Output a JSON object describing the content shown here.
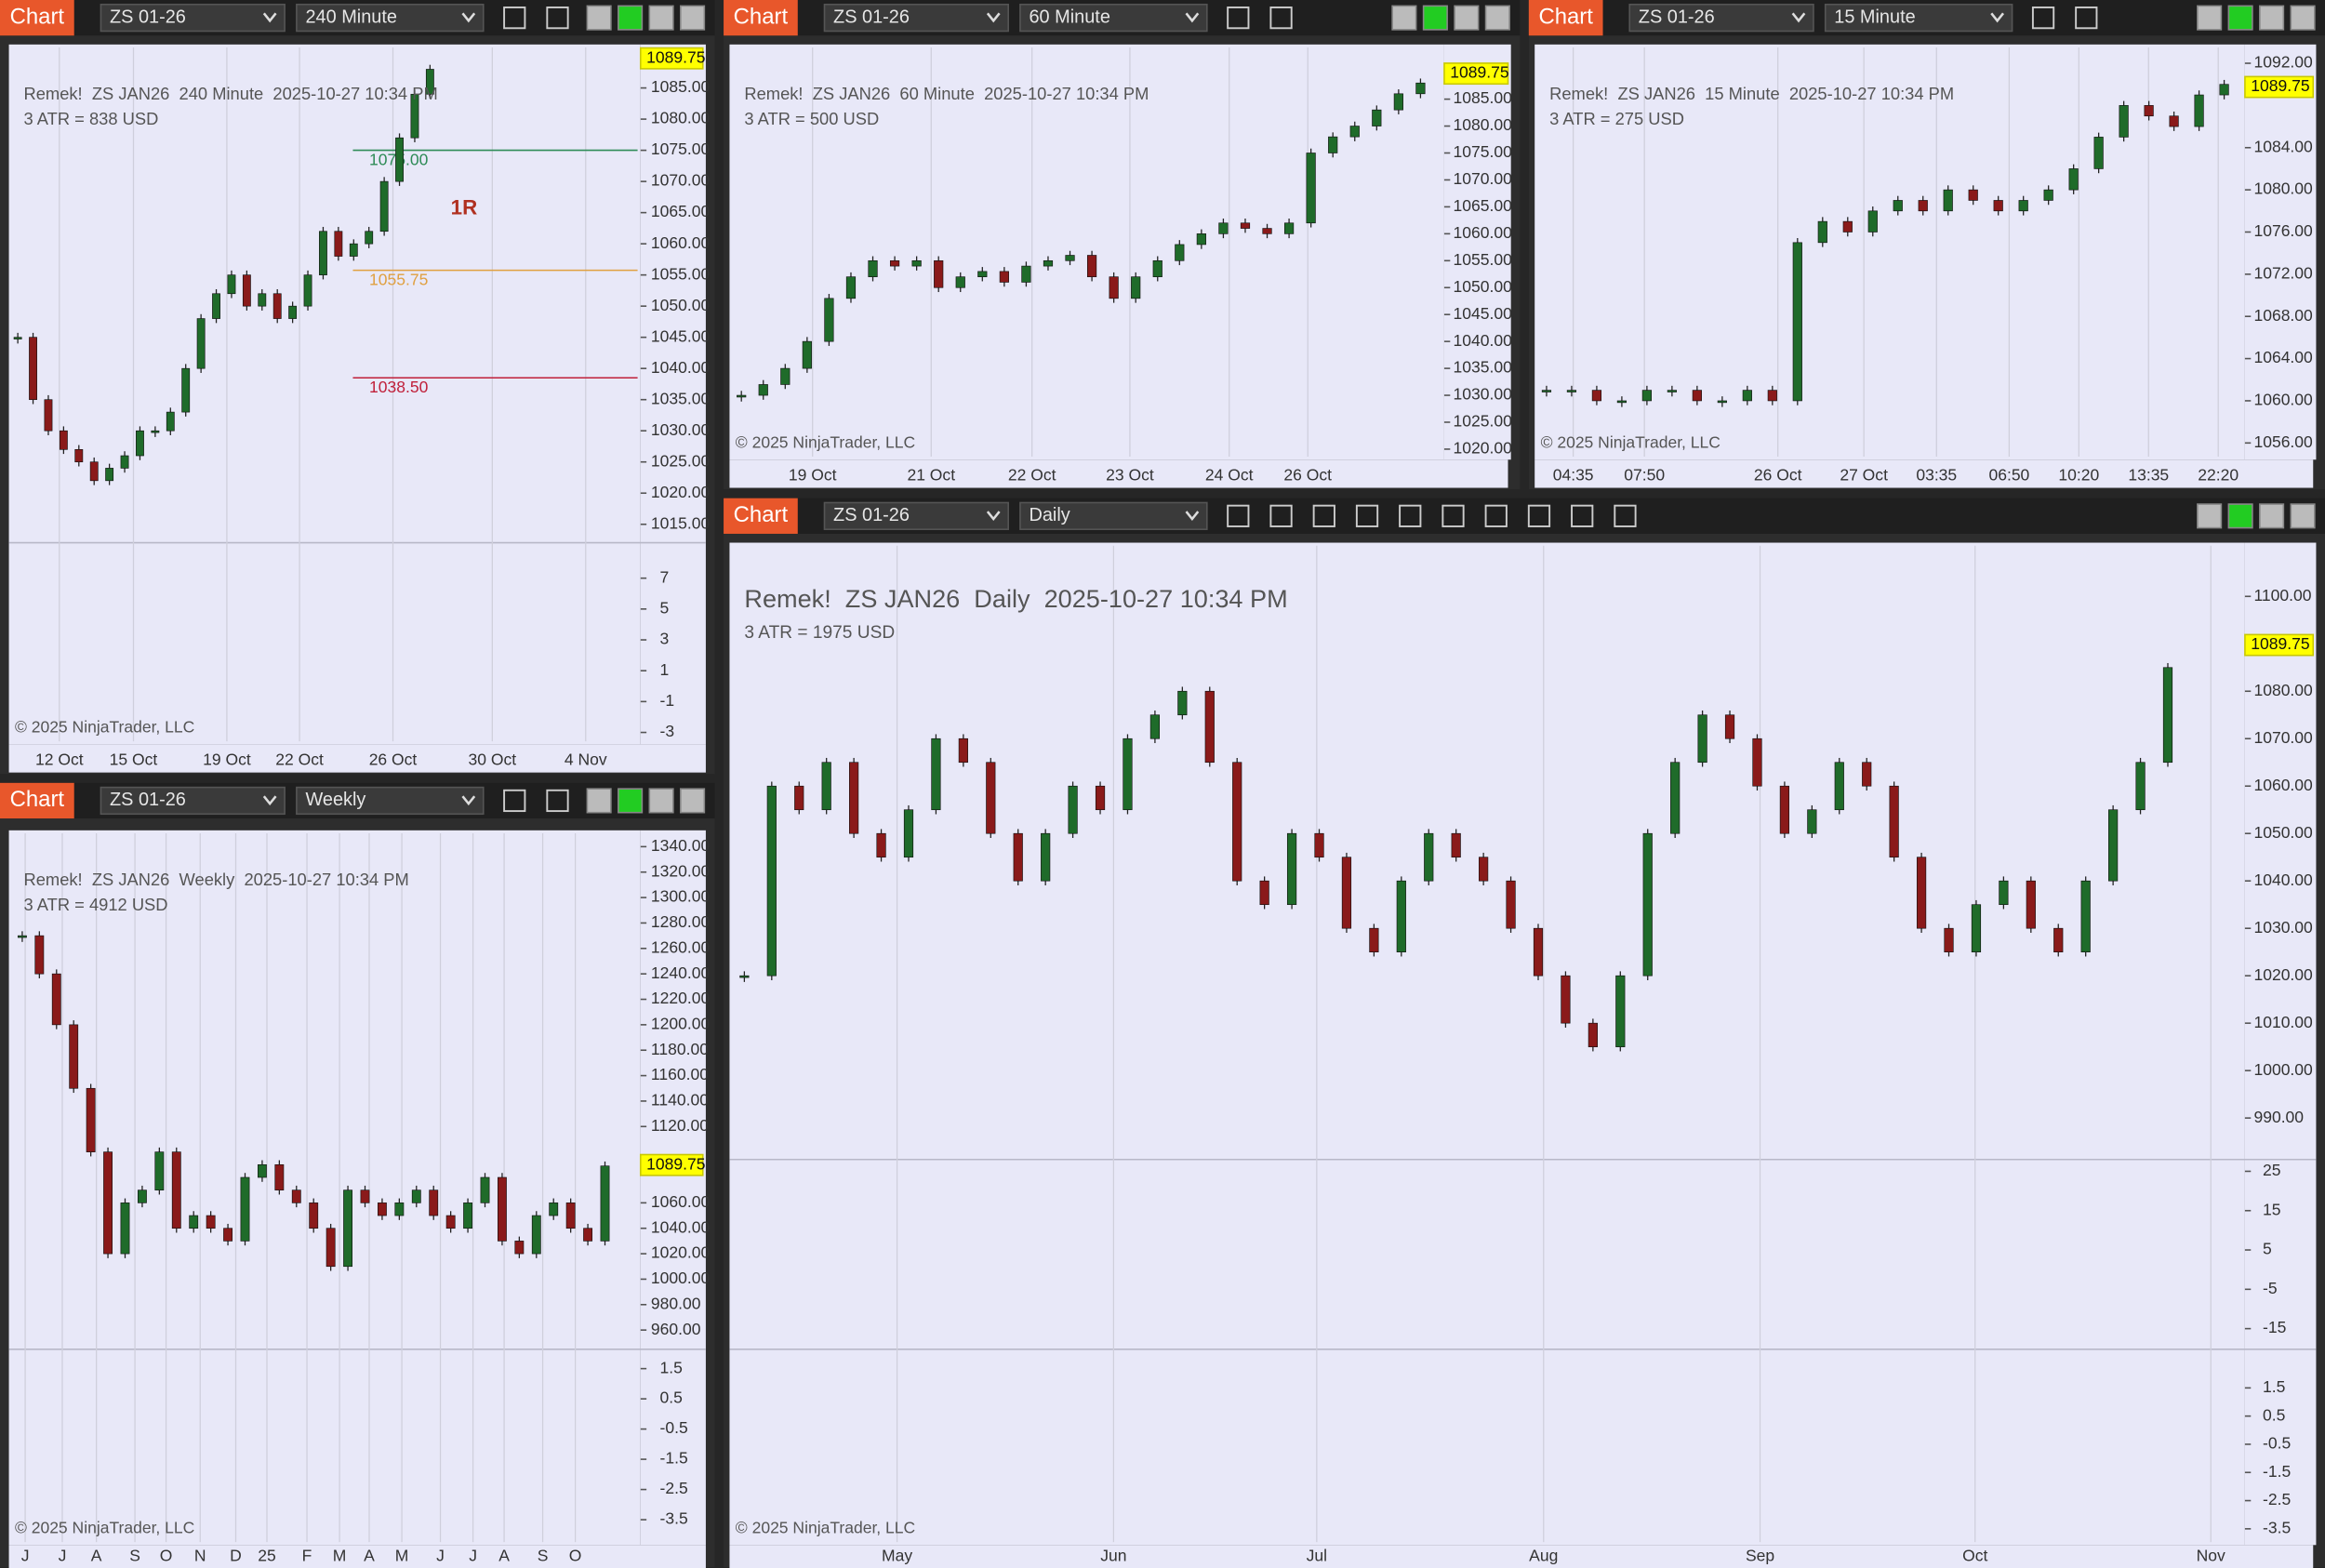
{
  "windows": [
    {
      "header": {
        "label": "Chart",
        "instrument": "ZS 01-26",
        "interval": "240 Minute"
      },
      "title": "Remek!  ZS JAN26  240 Minute  2025-10-27 10:34 PM",
      "atr": "3 ATR = 838 USD",
      "last_price": 1089.75,
      "ylim": [
        1013,
        1091.5
      ],
      "yticks": [
        {
          "value": 1085,
          "label": "1085.00"
        },
        {
          "value": 1080,
          "label": "1080.00"
        },
        {
          "value": 1075,
          "label": "1075.00"
        },
        {
          "value": 1070,
          "label": "1070.00"
        },
        {
          "value": 1065,
          "label": "1065.00"
        },
        {
          "value": 1060,
          "label": "1060.00"
        },
        {
          "value": 1055,
          "label": "1055.00"
        },
        {
          "value": 1050,
          "label": "1050.00"
        },
        {
          "value": 1045,
          "label": "1045.00"
        },
        {
          "value": 1040,
          "label": "1040.00"
        },
        {
          "value": 1035,
          "label": "1035.00"
        },
        {
          "value": 1030,
          "label": "1030.00"
        },
        {
          "value": 1025,
          "label": "1025.00"
        },
        {
          "value": 1020,
          "label": "1020.00"
        },
        {
          "value": 1015,
          "label": "1015.00"
        }
      ],
      "osc": [
        {
          "ylim": [
            -3.58,
            9.3
          ],
          "yticks": [
            7,
            5,
            3,
            1,
            -1,
            -3
          ]
        }
      ],
      "time_labels": [
        "12 Oct",
        "15 Oct",
        "19 Oct",
        "22 Oct",
        "26 Oct",
        "30 Oct",
        "4 Nov"
      ],
      "closes": [
        1045,
        1035,
        1030,
        1027,
        1025,
        1022,
        1024,
        1026,
        1030,
        1030,
        1033,
        1040,
        1048,
        1052,
        1055,
        1050,
        1052,
        1048,
        1050,
        1055,
        1062,
        1058,
        1060,
        1062,
        1070,
        1077,
        1084,
        1088
      ],
      "levels": [
        {
          "value": 1075,
          "label": "1075.00",
          "color": "#2e8b57"
        },
        {
          "value": 1055.75,
          "label": "1055.75",
          "color": "#e0a040"
        },
        {
          "value": 1038.5,
          "label": "1038.50",
          "color": "#c0203a"
        }
      ],
      "note": "1R",
      "copyright": "© 2025 NinjaTrader, LLC"
    },
    {
      "header": {
        "label": "Chart",
        "instrument": "ZS 01-26",
        "interval": "60 Minute"
      },
      "title": "Remek!  ZS JAN26  60 Minute  2025-10-27 10:34 PM",
      "atr": "3 ATR = 500 USD",
      "last_price": 1089.75,
      "ylim": [
        1018.6,
        1094.6
      ],
      "yticks": [
        {
          "value": 1085,
          "label": "1085.00"
        },
        {
          "value": 1080,
          "label": "1080.00"
        },
        {
          "value": 1075,
          "label": "1075.00"
        },
        {
          "value": 1070,
          "label": "1070.00"
        },
        {
          "value": 1065,
          "label": "1065.00"
        },
        {
          "value": 1060,
          "label": "1060.00"
        },
        {
          "value": 1055,
          "label": "1055.00"
        },
        {
          "value": 1050,
          "label": "1050.00"
        },
        {
          "value": 1045,
          "label": "1045.00"
        },
        {
          "value": 1040,
          "label": "1040.00"
        },
        {
          "value": 1035,
          "label": "1035.00"
        },
        {
          "value": 1030,
          "label": "1030.00"
        },
        {
          "value": 1025,
          "label": "1025.00"
        },
        {
          "value": 1020,
          "label": "1020.00"
        }
      ],
      "time_labels": [
        "19 Oct",
        "21 Oct",
        "22 Oct",
        "23 Oct",
        "24 Oct",
        "26 Oct"
      ],
      "closes": [
        1030,
        1032,
        1035,
        1040,
        1048,
        1052,
        1055,
        1054,
        1055,
        1050,
        1052,
        1053,
        1051,
        1054,
        1055,
        1056,
        1052,
        1048,
        1052,
        1055,
        1058,
        1060,
        1062,
        1061,
        1060,
        1062,
        1075,
        1078,
        1080,
        1083,
        1086,
        1088
      ],
      "copyright": "© 2025 NinjaTrader, LLC"
    },
    {
      "header": {
        "label": "Chart",
        "instrument": "ZS 01-26",
        "interval": "15 Minute"
      },
      "title": "Remek!  ZS JAN26  15 Minute  2025-10-27 10:34 PM",
      "atr": "3 ATR = 275 USD",
      "last_price": 1089.75,
      "ylim": [
        1054.7,
        1093.5
      ],
      "yticks": [
        {
          "value": 1092,
          "label": "1092.00"
        },
        {
          "value": 1084,
          "label": "1084.00"
        },
        {
          "value": 1080,
          "label": "1080.00"
        },
        {
          "value": 1076,
          "label": "1076.00"
        },
        {
          "value": 1072,
          "label": "1072.00"
        },
        {
          "value": 1068,
          "label": "1068.00"
        },
        {
          "value": 1064,
          "label": "1064.00"
        },
        {
          "value": 1060,
          "label": "1060.00"
        },
        {
          "value": 1056,
          "label": "1056.00"
        }
      ],
      "time_labels": [
        "04:35",
        "07:50",
        "26 Oct",
        "27 Oct",
        "03:35",
        "06:50",
        "10:20",
        "13:35",
        "22:20"
      ],
      "closes": [
        1061,
        1061,
        1060,
        1060,
        1061,
        1061,
        1060,
        1060,
        1061,
        1060,
        1075,
        1077,
        1076,
        1078,
        1079,
        1078,
        1080,
        1079,
        1078,
        1079,
        1080,
        1082,
        1085,
        1088,
        1087,
        1086,
        1089,
        1090
      ],
      "copyright": "© 2025 NinjaTrader, LLC"
    },
    {
      "header": {
        "label": "Chart",
        "instrument": "ZS 01-26",
        "interval": "Weekly"
      },
      "title": "Remek!  ZS JAN26  Weekly  2025-10-27 10:34 PM",
      "atr": "3 ATR = 4912 USD",
      "last_price": 1089.75,
      "ylim": [
        950.7,
        1350.5
      ],
      "yticks": [
        {
          "value": 1340,
          "label": "1340.00"
        },
        {
          "value": 1320,
          "label": "1320.00"
        },
        {
          "value": 1300,
          "label": "1300.00"
        },
        {
          "value": 1280,
          "label": "1280.00"
        },
        {
          "value": 1260,
          "label": "1260.00"
        },
        {
          "value": 1240,
          "label": "1240.00"
        },
        {
          "value": 1220,
          "label": "1220.00"
        },
        {
          "value": 1200,
          "label": "1200.00"
        },
        {
          "value": 1180,
          "label": "1180.00"
        },
        {
          "value": 1160,
          "label": "1160.00"
        },
        {
          "value": 1140,
          "label": "1140.00"
        },
        {
          "value": 1120,
          "label": "1120.00"
        },
        {
          "value": 1060,
          "label": "1060.00"
        },
        {
          "value": 1040,
          "label": "1040.00"
        },
        {
          "value": 1020,
          "label": "1020.00"
        },
        {
          "value": 1000,
          "label": "1000.00"
        },
        {
          "value": 980,
          "label": "980.00"
        },
        {
          "value": 960,
          "label": "960.00"
        }
      ],
      "osc": [
        {
          "ylim": [
            -4.24,
            2.14
          ],
          "yticks": [
            1.5,
            0.5,
            -0.5,
            -1.5,
            -2.5,
            -3.5
          ]
        }
      ],
      "time_labels": [
        "J",
        "J",
        "A",
        "S",
        "O",
        "N",
        "D",
        "25",
        "F",
        "M",
        "A",
        "M",
        "J",
        "J",
        "A",
        "S",
        "O"
      ],
      "closes": [
        1270,
        1240,
        1200,
        1150,
        1100,
        1020,
        1060,
        1070,
        1100,
        1040,
        1050,
        1040,
        1030,
        1080,
        1090,
        1070,
        1060,
        1040,
        1010,
        1070,
        1060,
        1050,
        1060,
        1070,
        1050,
        1040,
        1060,
        1080,
        1030,
        1020,
        1050,
        1060,
        1040,
        1030,
        1089
      ],
      "copyright": "© 2025 NinjaTrader, LLC"
    },
    {
      "header": {
        "label": "Chart",
        "instrument": "ZS 01-26",
        "interval": "Daily"
      },
      "title": "Remek!  ZS JAN26  Daily  2025-10-27 10:34 PM",
      "atr": "3 ATR = 1975 USD",
      "last_price": 1089.75,
      "ylim": [
        982.5,
        1110.7
      ],
      "yticks": [
        {
          "value": 1100,
          "label": "1100.00"
        },
        {
          "value": 1080,
          "label": "1080.00"
        },
        {
          "value": 1070,
          "label": "1070.00"
        },
        {
          "value": 1060,
          "label": "1060.00"
        },
        {
          "value": 1050,
          "label": "1050.00"
        },
        {
          "value": 1040,
          "label": "1040.00"
        },
        {
          "value": 1030,
          "label": "1030.00"
        },
        {
          "value": 1020,
          "label": "1020.00"
        },
        {
          "value": 1010,
          "label": "1010.00"
        },
        {
          "value": 1000,
          "label": "1000.00"
        },
        {
          "value": 990,
          "label": "990.00"
        }
      ],
      "osc": [
        {
          "ylim": [
            -19.5,
            28
          ],
          "yticks": [
            25,
            15,
            5,
            -5,
            -15
          ]
        },
        {
          "ylim": [
            -3.97,
            2.87
          ],
          "yticks": [
            1.5,
            0.5,
            -0.5,
            -1.5,
            -2.5,
            -3.5
          ]
        }
      ],
      "time_labels": [
        "May",
        "Jun",
        "Jul",
        "Aug",
        "Sep",
        "Oct",
        "Nov"
      ],
      "closes": [
        1020,
        1060,
        1055,
        1065,
        1050,
        1045,
        1055,
        1070,
        1065,
        1050,
        1040,
        1050,
        1060,
        1055,
        1070,
        1075,
        1080,
        1065,
        1040,
        1035,
        1050,
        1045,
        1030,
        1025,
        1040,
        1050,
        1045,
        1040,
        1030,
        1020,
        1010,
        1005,
        1020,
        1050,
        1065,
        1075,
        1070,
        1060,
        1050,
        1055,
        1065,
        1060,
        1045,
        1030,
        1025,
        1035,
        1040,
        1030,
        1025,
        1040,
        1055,
        1065,
        1085
      ],
      "copyright": "© 2025 NinjaTrader, LLC"
    }
  ]
}
